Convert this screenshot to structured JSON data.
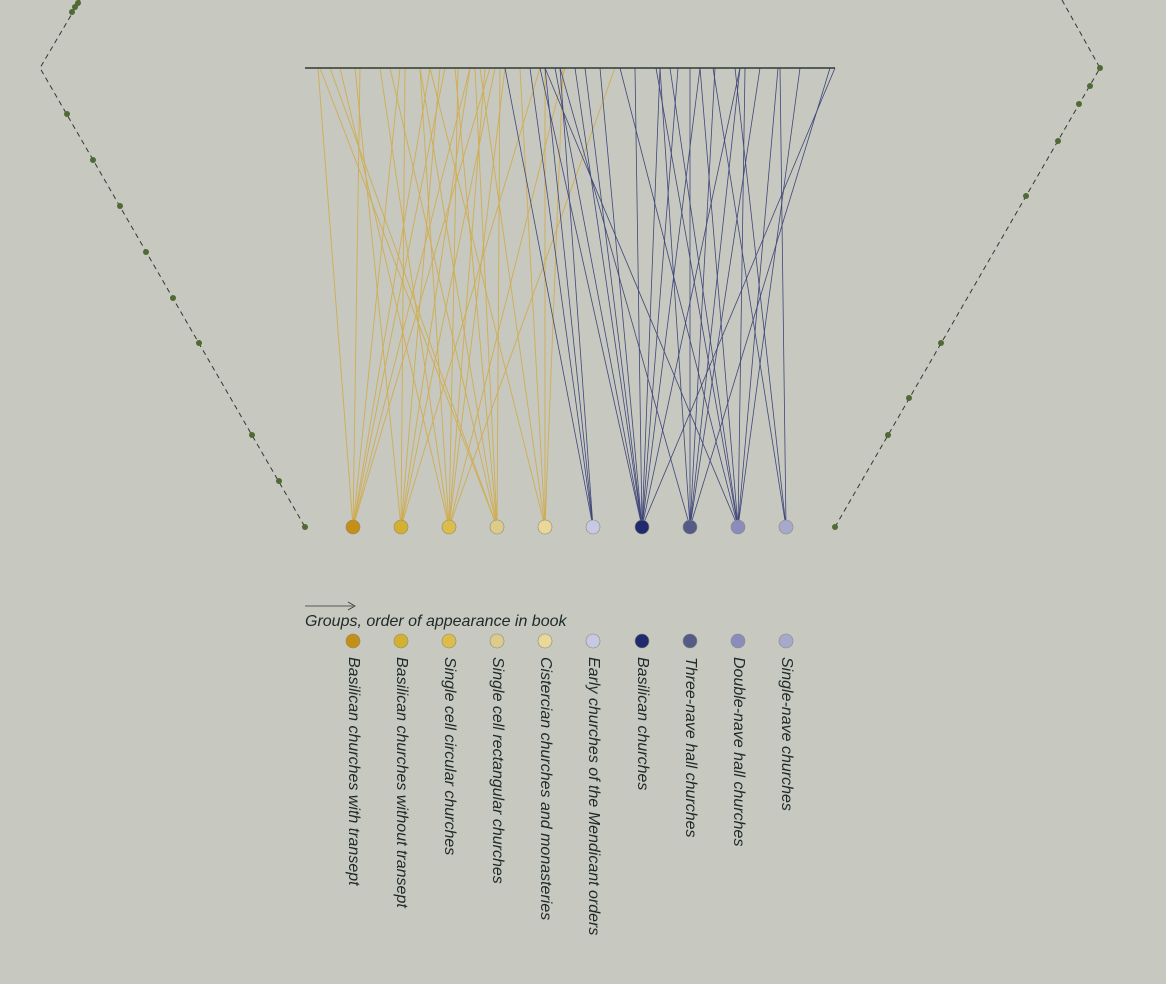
{
  "legend": {
    "title": "Groups, order of appearance in book"
  },
  "groups": [
    {
      "label": "Basilican churches with transept",
      "color": "#c58e17"
    },
    {
      "label": "Basilican churches without transept",
      "color": "#d4b031"
    },
    {
      "label": "Single cell circular churches",
      "color": "#dcbc4a"
    },
    {
      "label": "Single cell rectangular churches",
      "color": "#dccb8a"
    },
    {
      "label": "Cistercian churches and monasteries",
      "color": "#ead898"
    },
    {
      "label": "Early churches of the Mendicant orders",
      "color": "#c7c8e1"
    },
    {
      "label": "Basilican churches",
      "color": "#202a6c"
    },
    {
      "label": "Three-nave hall churches",
      "color": "#545b86"
    },
    {
      "label": "Double-nave hall churches",
      "color": "#8a8dbb"
    },
    {
      "label": "Single-nave churches",
      "color": "#a7a9cc"
    }
  ],
  "palette": {
    "warm_link": "#d0ad52",
    "cool_link": "#3f467a",
    "axis": "#2e3a33",
    "dots": "#4f6a35"
  }
}
